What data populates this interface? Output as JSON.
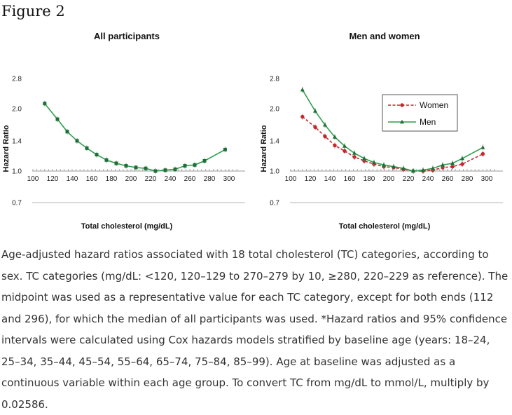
{
  "figure_title": "Figure 2",
  "caption": "Age-adjusted hazard ratios associated with 18 total cholesterol (TC) categories, according to sex. TC categories (mg/dL: <120, 120–129 to 270–279 by 10, ≥280, 220–229 as reference). The midpoint was used as a representative value for each TC category, except for both ends (112 and 296), for which the median of all participants was used. *Hazard ratios and 95% confidence intervals were calculated using Cox hazards models stratified by baseline age (years: 18–24, 25–34, 35–44, 45–54, 55–64, 65–74, 75–84, 85–99). Age at baseline was adjusted as a continuous variable within each age group. To convert TC from mg/dL to mmol/L, multiply by 0.02586.",
  "chart_data": [
    {
      "type": "line",
      "title": "All participants",
      "xlabel": "Total cholesterol (mg/dL)",
      "ylabel": "Hazard Ratio",
      "y_scale": "log",
      "xlim": [
        100,
        310
      ],
      "ylim": [
        0.7,
        2.8
      ],
      "x_ticks": [
        "100",
        "120",
        "140",
        "160",
        "180",
        "200",
        "220",
        "240",
        "260",
        "280",
        "300"
      ],
      "y_ticks": [
        "2.8",
        "2.0",
        "1.4",
        "1.0",
        "0.7"
      ],
      "grid": false,
      "series": [
        {
          "color": "#2e9e4e",
          "marker": "square",
          "x": [
            112,
            125,
            135,
            145,
            155,
            165,
            175,
            185,
            195,
            205,
            215,
            225,
            235,
            245,
            255,
            265,
            275,
            296
          ],
          "y": [
            2.12,
            1.78,
            1.55,
            1.4,
            1.29,
            1.2,
            1.13,
            1.09,
            1.06,
            1.04,
            1.03,
            1.0,
            1.01,
            1.02,
            1.06,
            1.07,
            1.12,
            1.27
          ]
        }
      ]
    },
    {
      "type": "line",
      "title": "Men and women",
      "xlabel": "Total cholesterol (mg/dL)",
      "ylabel": "Hazard Ratio",
      "y_scale": "log",
      "xlim": [
        100,
        310
      ],
      "ylim": [
        0.7,
        2.8
      ],
      "x_ticks": [
        "100",
        "120",
        "140",
        "160",
        "180",
        "200",
        "220",
        "240",
        "260",
        "280",
        "300"
      ],
      "y_ticks": [
        "2.8",
        "2.0",
        "1.4",
        "1.0",
        "0.7"
      ],
      "grid": false,
      "legend": "top-right",
      "series": [
        {
          "name": "Women",
          "color": "#c0282d",
          "marker": "circle",
          "dashed": true,
          "x": [
            112,
            125,
            135,
            145,
            155,
            165,
            175,
            185,
            195,
            205,
            215,
            225,
            235,
            245,
            255,
            265,
            275,
            296
          ],
          "y": [
            1.83,
            1.63,
            1.47,
            1.33,
            1.25,
            1.17,
            1.12,
            1.08,
            1.05,
            1.04,
            1.02,
            1.0,
            1.0,
            1.01,
            1.04,
            1.05,
            1.08,
            1.21
          ]
        },
        {
          "name": "Men",
          "color": "#2e9e4e",
          "marker": "triangle",
          "dashed": false,
          "x": [
            112,
            125,
            135,
            145,
            155,
            165,
            175,
            185,
            195,
            205,
            215,
            225,
            235,
            245,
            255,
            265,
            275,
            296
          ],
          "y": [
            2.47,
            1.95,
            1.67,
            1.46,
            1.32,
            1.22,
            1.15,
            1.1,
            1.07,
            1.05,
            1.03,
            1.0,
            1.01,
            1.03,
            1.07,
            1.09,
            1.15,
            1.3
          ]
        }
      ]
    }
  ]
}
